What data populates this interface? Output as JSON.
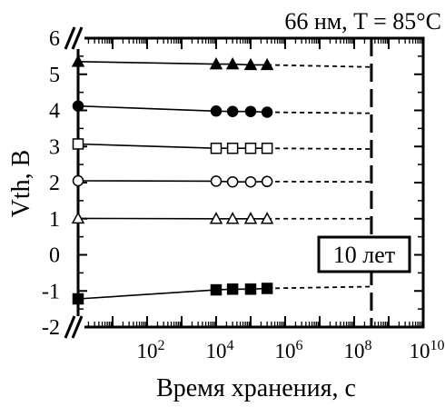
{
  "chart_data": {
    "type": "line",
    "title": "66 нм, T = 85°C",
    "xlabel": "Время хранения, с",
    "ylabel": "Vth, В",
    "x_scale": "log10",
    "xlim": [
      1,
      10000000000
    ],
    "ylim": [
      -2,
      6
    ],
    "x_ticks": [
      {
        "exp": 2,
        "label_base": "10",
        "label_exp": "2"
      },
      {
        "exp": 4,
        "label_base": "10",
        "label_exp": "4"
      },
      {
        "exp": 6,
        "label_base": "10",
        "label_exp": "6"
      },
      {
        "exp": 8,
        "label_base": "10",
        "label_exp": "8"
      },
      {
        "exp": 10,
        "label_base": "10",
        "label_exp": "10"
      }
    ],
    "y_ticks": [
      "-2",
      "-1",
      "0",
      "1",
      "2",
      "3",
      "4",
      "5",
      "6"
    ],
    "axis_break": true,
    "annotation": {
      "text": "10 лет",
      "x": 315000000
    },
    "series": [
      {
        "marker": "filled-triangle",
        "start_x": 1,
        "start_y": 5.35,
        "x": [
          10000,
          30000,
          100000,
          300000
        ],
        "y": [
          5.28,
          5.28,
          5.26,
          5.26
        ],
        "extrapolate_to": 315000000,
        "end_y": 5.2
      },
      {
        "marker": "filled-circle",
        "start_x": 1,
        "start_y": 4.12,
        "x": [
          10000,
          30000,
          100000,
          300000
        ],
        "y": [
          3.98,
          3.97,
          3.97,
          3.95
        ],
        "extrapolate_to": 315000000,
        "end_y": 3.92
      },
      {
        "marker": "open-square",
        "start_x": 1,
        "start_y": 3.07,
        "x": [
          10000,
          30000,
          100000,
          300000
        ],
        "y": [
          2.95,
          2.95,
          2.95,
          2.95
        ],
        "extrapolate_to": 315000000,
        "end_y": 2.93
      },
      {
        "marker": "open-circle",
        "start_x": 1,
        "start_y": 2.05,
        "x": [
          10000,
          30000,
          100000,
          300000
        ],
        "y": [
          2.04,
          2.02,
          2.02,
          2.03
        ],
        "extrapolate_to": 315000000,
        "end_y": 2.02
      },
      {
        "marker": "open-triangle",
        "start_x": 1,
        "start_y": 1.01,
        "x": [
          10000,
          30000,
          100000,
          300000
        ],
        "y": [
          1.0,
          1.0,
          1.0,
          1.0
        ],
        "extrapolate_to": 315000000,
        "end_y": 1.0
      },
      {
        "marker": "filled-square",
        "start_x": 1,
        "start_y": -1.22,
        "x": [
          10000,
          30000,
          100000,
          300000
        ],
        "y": [
          -0.97,
          -0.95,
          -0.95,
          -0.93
        ],
        "extrapolate_to": 315000000,
        "end_y": -0.88
      }
    ]
  }
}
